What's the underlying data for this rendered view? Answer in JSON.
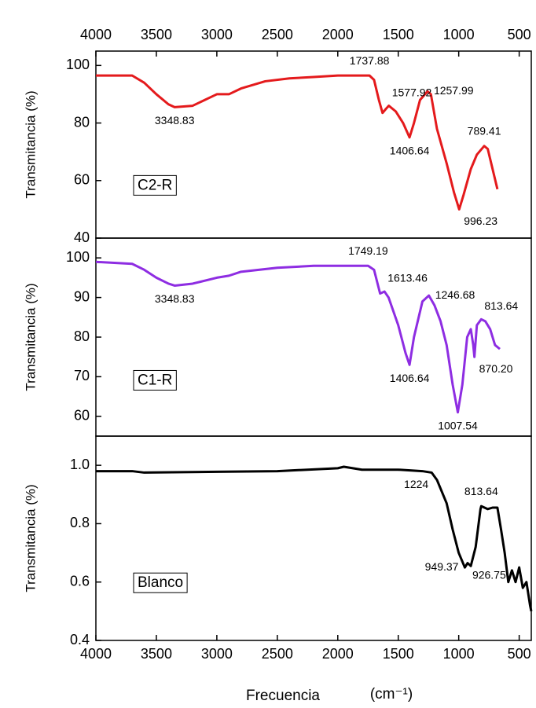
{
  "chart_data": [
    {
      "type": "line",
      "ylabel": "Transmitancia (%)",
      "label": "C2-R",
      "xlim": [
        4000,
        400
      ],
      "xticks": [
        4000,
        3500,
        3000,
        2500,
        2000,
        1500,
        1000,
        500
      ],
      "xticks_side": "top",
      "ylim": [
        40,
        105
      ],
      "yticks": [
        40,
        60,
        80,
        100
      ],
      "series": [
        {
          "color": "#e41a1c",
          "x": [
            4000,
            3700,
            3600,
            3500,
            3400,
            3348.83,
            3200,
            3100,
            3000,
            2900,
            2800,
            2600,
            2400,
            2200,
            2000,
            1800,
            1737.88,
            1700,
            1660,
            1630,
            1600,
            1577.92,
            1520,
            1460,
            1406.64,
            1370,
            1320,
            1257.99,
            1230,
            1180,
            1100,
            1040,
            996.23,
            960,
            900,
            850,
            789.41,
            760,
            720,
            680
          ],
          "values": [
            96.5,
            96.5,
            94,
            90,
            86.5,
            85.5,
            86,
            88,
            90,
            90,
            92,
            94.5,
            95.5,
            96,
            96.5,
            96.5,
            96.5,
            95,
            88,
            83.5,
            85,
            86,
            84,
            80,
            75,
            80,
            88,
            91,
            90,
            78,
            66,
            56,
            50,
            55,
            64,
            69,
            72,
            71,
            64,
            57
          ]
        }
      ],
      "annotations": [
        {
          "text": "3348.83",
          "x": 3348.83,
          "y": 85.5,
          "position": "below"
        },
        {
          "text": "1737.88",
          "x": 1737.88,
          "y": 96.5,
          "position": "above"
        },
        {
          "text": "1577.92",
          "x": 1577.92,
          "y": 86,
          "position": "above-right"
        },
        {
          "text": "1406.64",
          "x": 1406.64,
          "y": 75,
          "position": "below"
        },
        {
          "text": "1257.99",
          "x": 1257.99,
          "y": 91,
          "position": "right"
        },
        {
          "text": "789.41",
          "x": 789.41,
          "y": 72,
          "position": "above"
        },
        {
          "text": "996.23",
          "x": 996.23,
          "y": 50,
          "position": "below-right"
        }
      ]
    },
    {
      "type": "line",
      "ylabel": "Transmitancia (%)",
      "label": "C1-R",
      "xlim": [
        4000,
        400
      ],
      "ylim": [
        55,
        105
      ],
      "yticks": [
        60,
        70,
        80,
        90,
        100
      ],
      "series": [
        {
          "color": "#8e2de2",
          "x": [
            4000,
            3700,
            3600,
            3500,
            3400,
            3348.83,
            3200,
            3000,
            2900,
            2800,
            2500,
            2200,
            2000,
            1800,
            1749.19,
            1700,
            1650,
            1613.46,
            1580,
            1500,
            1440,
            1406.64,
            1370,
            1300,
            1246.68,
            1200,
            1150,
            1100,
            1050,
            1007.54,
            970,
            930,
            900,
            880,
            870.2,
            850,
            813.64,
            780,
            740,
            700,
            660
          ],
          "values": [
            99,
            98.5,
            97,
            95,
            93.5,
            93,
            93.5,
            95,
            95.5,
            96.5,
            97.5,
            98,
            98,
            98,
            98,
            97,
            91,
            91.5,
            90,
            83,
            76,
            73,
            80,
            89,
            90.5,
            88,
            84,
            78,
            68,
            61,
            68,
            80,
            82,
            78,
            75,
            83,
            84.5,
            84,
            82,
            78,
            77
          ]
        }
      ],
      "annotations": [
        {
          "text": "3348.83",
          "x": 3348.83,
          "y": 93,
          "position": "below"
        },
        {
          "text": "1749.19",
          "x": 1749.19,
          "y": 98,
          "position": "above"
        },
        {
          "text": "1613.46",
          "x": 1613.46,
          "y": 91.5,
          "position": "above-right"
        },
        {
          "text": "1406.64",
          "x": 1406.64,
          "y": 73,
          "position": "below"
        },
        {
          "text": "1246.68",
          "x": 1246.68,
          "y": 90.5,
          "position": "right"
        },
        {
          "text": "813.64",
          "x": 813.64,
          "y": 84.5,
          "position": "above-right"
        },
        {
          "text": "870.20",
          "x": 870.2,
          "y": 75,
          "position": "below-right"
        },
        {
          "text": "1007.54",
          "x": 1007.54,
          "y": 61,
          "position": "below"
        }
      ]
    },
    {
      "type": "line",
      "ylabel": "Transmitancia (%)",
      "label": "Blanco",
      "xlim": [
        4000,
        400
      ],
      "xticks": [
        4000,
        3500,
        3000,
        2500,
        2000,
        1500,
        1000,
        500
      ],
      "xticks_side": "bottom",
      "ylim": [
        0.4,
        1.1
      ],
      "yticks": [
        0.4,
        0.6,
        0.8,
        {
          "value": 1,
          "label": "1.0"
        }
      ],
      "xlabel": "Frecuencia",
      "xunit": "(cm⁻¹)",
      "series": [
        {
          "color": "#000000",
          "x": [
            4000,
            3700,
            3600,
            3000,
            2500,
            2000,
            1950,
            1800,
            1500,
            1300,
            1224,
            1180,
            1100,
            1050,
            1000,
            949.37,
            926.75,
            900,
            860,
            820,
            813.64,
            760,
            720,
            680,
            650,
            620,
            590,
            560,
            530,
            500,
            470,
            440,
            410,
            400
          ],
          "values": [
            0.98,
            0.98,
            0.975,
            0.978,
            0.98,
            0.99,
            0.995,
            0.985,
            0.985,
            0.98,
            0.975,
            0.95,
            0.87,
            0.78,
            0.7,
            0.65,
            0.665,
            0.655,
            0.72,
            0.85,
            0.86,
            0.85,
            0.855,
            0.855,
            0.78,
            0.7,
            0.6,
            0.64,
            0.6,
            0.65,
            0.58,
            0.6,
            0.52,
            0.5
          ]
        }
      ],
      "annotations": [
        {
          "text": "1224",
          "x": 1224,
          "y": 0.975,
          "position": "below-left"
        },
        {
          "text": "813.64",
          "x": 813.64,
          "y": 0.86,
          "position": "above"
        },
        {
          "text": "949.37",
          "x": 949.37,
          "y": 0.65,
          "position": "left"
        },
        {
          "text": "926.75",
          "x": 926.75,
          "y": 0.665,
          "position": "below-right"
        }
      ]
    }
  ]
}
